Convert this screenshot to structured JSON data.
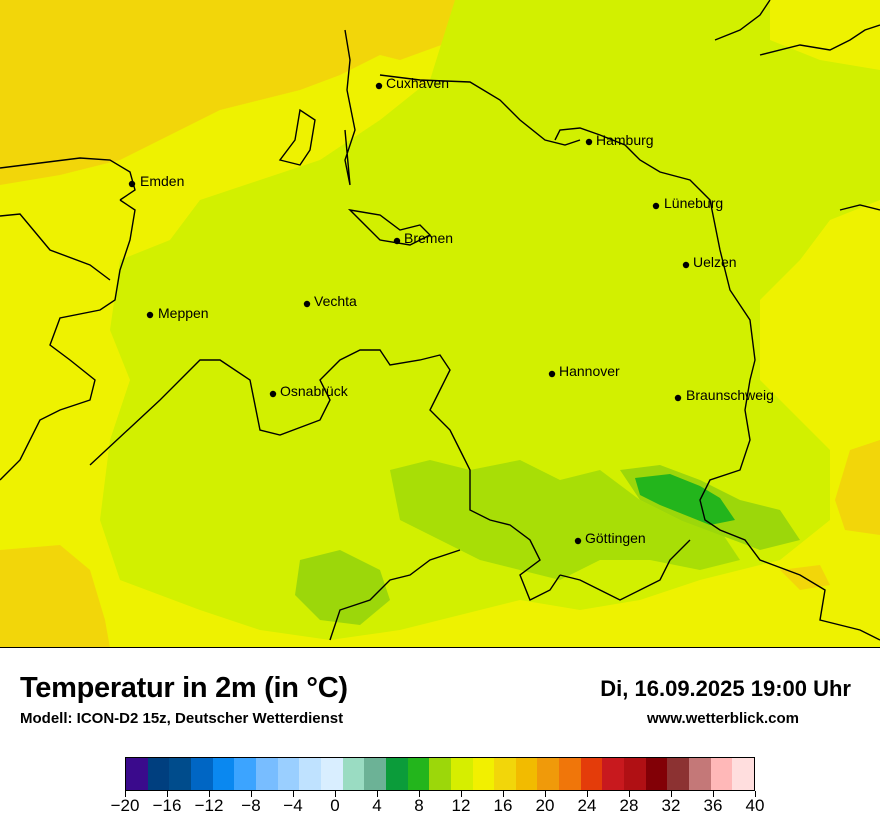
{
  "map": {
    "cities": [
      {
        "name": "Cuxhaven"
      },
      {
        "name": "Hamburg"
      },
      {
        "name": "Emden"
      },
      {
        "name": "Lüneburg"
      },
      {
        "name": "Bremen"
      },
      {
        "name": "Uelzen"
      },
      {
        "name": "Vechta"
      },
      {
        "name": "Meppen"
      },
      {
        "name": "Hannover"
      },
      {
        "name": "Osnabrück"
      },
      {
        "name": "Braunschweig"
      },
      {
        "name": "Göttingen"
      }
    ]
  },
  "footer": {
    "title": "Temperatur in 2m (in °C)",
    "model": "Modell: ICON-D2 15z, Deutscher Wetterdienst",
    "datetime": "Di, 16.09.2025 19:00 Uhr",
    "website": "www.wetterblick.com"
  },
  "legend": {
    "colors": [
      "#3a0a8c",
      "#003f7f",
      "#004c8c",
      "#0066c4",
      "#0a88f0",
      "#3ca4ff",
      "#78bdff",
      "#9acfff",
      "#bfe2ff",
      "#d9eeff",
      "#9adcc2",
      "#6cb296",
      "#0b9c3a",
      "#23b51c",
      "#9cd70a",
      "#d6ee00",
      "#f2f000",
      "#f2d60a",
      "#f2bb00",
      "#f09a0a",
      "#f0760a",
      "#e43c0a",
      "#c8191e",
      "#b01014",
      "#820006",
      "#8c3232",
      "#c47878",
      "#ffb8b8",
      "#ffdede"
    ],
    "tick_labels": [
      "−20",
      "−16",
      "−12",
      "−8",
      "−4",
      "0",
      "4",
      "8",
      "12",
      "16",
      "20",
      "24",
      "28",
      "32",
      "36",
      "40"
    ],
    "range": [
      -20,
      40
    ]
  }
}
